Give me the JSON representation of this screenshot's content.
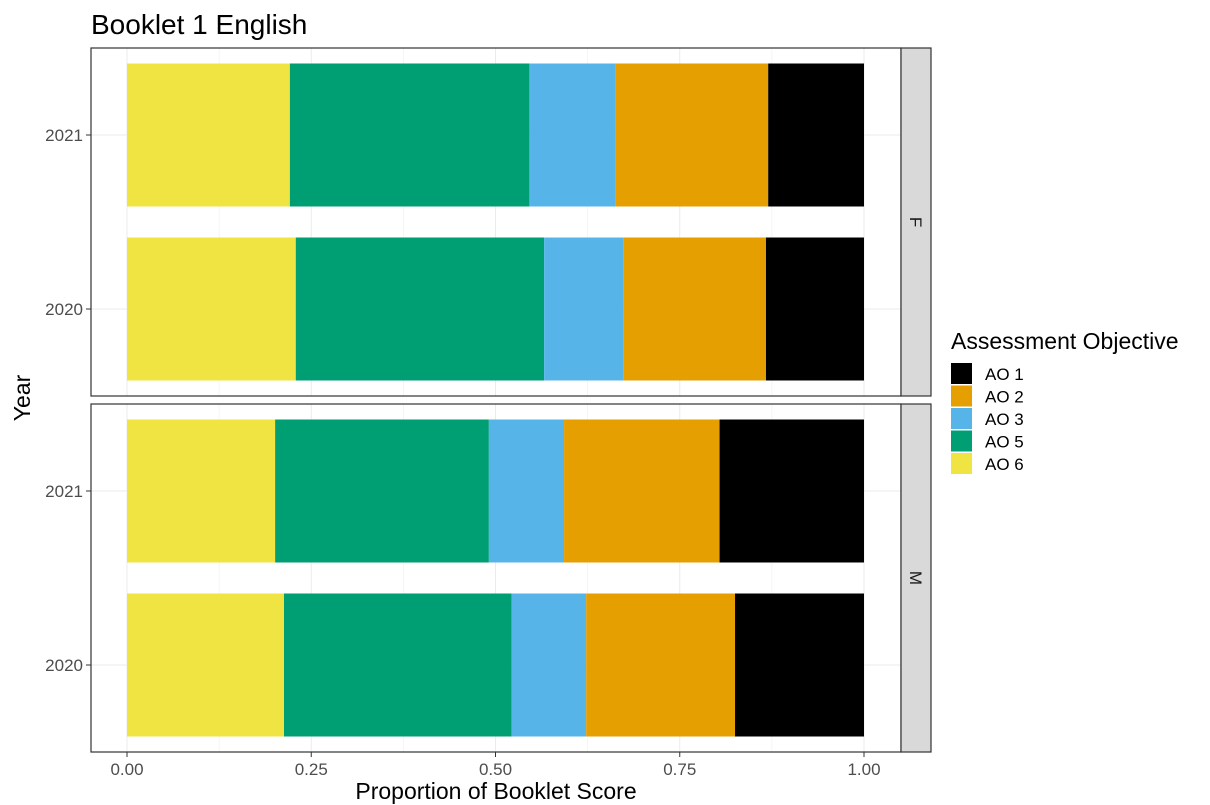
{
  "chart_data": {
    "type": "bar",
    "orientation": "horizontal",
    "stacked": true,
    "title": "Booklet 1 English",
    "xlabel": "Proportion of Booklet Score",
    "ylabel": "Year",
    "xlim": [
      0,
      1
    ],
    "x_ticks": [
      "0.00",
      "0.25",
      "0.50",
      "0.75",
      "1.00"
    ],
    "categories": [
      "2021",
      "2020"
    ],
    "grid": true,
    "legend": {
      "title": "Assessment Objective",
      "placement": "right",
      "items": [
        {
          "name": "AO 1",
          "color": "#000000"
        },
        {
          "name": "AO 2",
          "color": "#E69F00"
        },
        {
          "name": "AO 3",
          "color": "#56B4E9"
        },
        {
          "name": "AO 5",
          "color": "#009E73"
        },
        {
          "name": "AO 6",
          "color": "#F0E442"
        }
      ]
    },
    "stack_order_left_to_right": [
      "AO 6",
      "AO 5",
      "AO 3",
      "AO 2",
      "AO 1"
    ],
    "facets": [
      {
        "label": "F",
        "bars": [
          {
            "year": "2021",
            "values": {
              "AO 6": 0.221,
              "AO 5": 0.325,
              "AO 3": 0.117,
              "AO 2": 0.207,
              "AO 1": 0.13
            }
          },
          {
            "year": "2020",
            "values": {
              "AO 6": 0.229,
              "AO 5": 0.337,
              "AO 3": 0.108,
              "AO 2": 0.193,
              "AO 1": 0.133
            }
          }
        ]
      },
      {
        "label": "M",
        "bars": [
          {
            "year": "2021",
            "values": {
              "AO 6": 0.201,
              "AO 5": 0.29,
              "AO 3": 0.102,
              "AO 2": 0.211,
              "AO 1": 0.196
            }
          },
          {
            "year": "2020",
            "values": {
              "AO 6": 0.213,
              "AO 5": 0.309,
              "AO 3": 0.101,
              "AO 2": 0.202,
              "AO 1": 0.175
            }
          }
        ]
      }
    ]
  }
}
